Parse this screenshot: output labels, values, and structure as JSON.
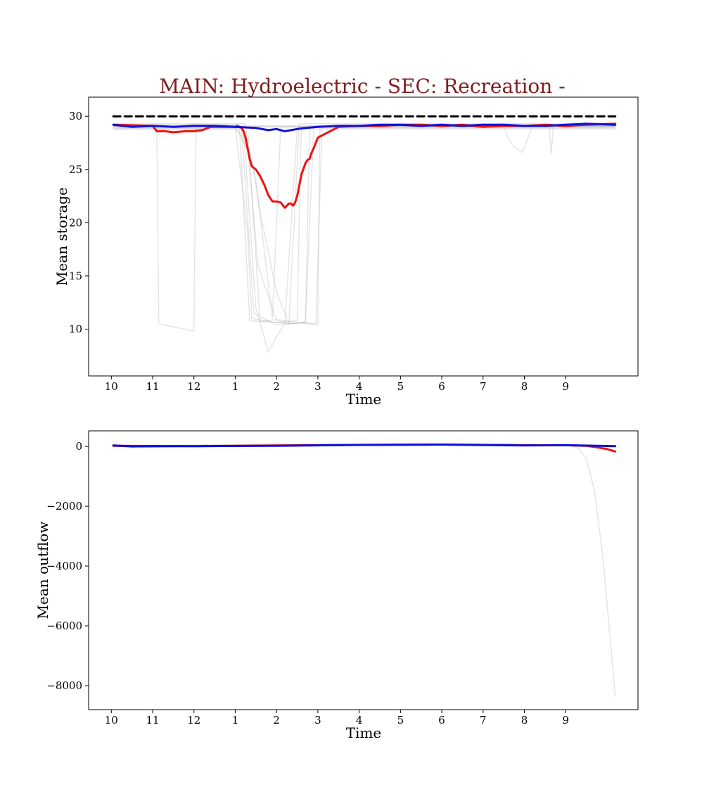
{
  "chart_data": [
    {
      "type": "line",
      "title": "MAIN: Hydroelectric - SEC: Recreation -",
      "xlabel": "Time",
      "ylabel": "Mean storage",
      "x_tick_labels": [
        "10",
        "11",
        "12",
        "1",
        "2",
        "3",
        "4",
        "5",
        "6",
        "7",
        "8",
        "9"
      ],
      "xlim": [
        -0.55,
        12.75
      ],
      "ylim": [
        5.6,
        31.8
      ],
      "y_ticks": [
        10,
        15,
        20,
        25,
        30
      ],
      "grid": false,
      "colors": {
        "capacity": "#000000",
        "red": "#ee1111",
        "blue": "#1010dd",
        "ensemble": "#b4b4b4"
      },
      "series": [
        {
          "role": "capacity",
          "style": "dashed",
          "color": "#000000",
          "x": [
            0.05,
            12.2
          ],
          "y": [
            30.0,
            30.0
          ]
        },
        {
          "role": "highlight",
          "color": "#ee1111",
          "x": [
            0.05,
            1.0,
            1.1,
            1.3,
            1.5,
            1.8,
            2.0,
            2.2,
            2.4,
            2.7,
            3.0,
            3.05,
            3.1,
            3.12,
            3.15,
            3.17,
            3.2,
            3.25,
            3.3,
            3.35,
            3.4,
            3.5,
            3.6,
            3.65,
            3.7,
            3.8,
            3.9,
            4.0,
            4.1,
            4.2,
            4.3,
            4.35,
            4.4,
            4.45,
            4.5,
            4.55,
            4.6,
            4.7,
            4.75,
            4.8,
            4.85,
            4.9,
            5.0,
            5.5,
            6.0,
            6.5,
            7.0,
            7.5,
            8.0,
            8.5,
            9.0,
            9.5,
            10.0,
            10.5,
            11.0,
            11.5,
            12.2
          ],
          "y": [
            29.2,
            29.1,
            28.6,
            28.6,
            28.5,
            28.6,
            28.6,
            28.7,
            29.0,
            29.0,
            29.0,
            29.1,
            29.0,
            29.0,
            28.9,
            28.8,
            28.6,
            28.0,
            27.0,
            26.0,
            25.3,
            25.0,
            24.4,
            24.0,
            23.6,
            22.6,
            22.0,
            22.0,
            21.9,
            21.4,
            21.8,
            21.8,
            21.6,
            21.9,
            22.5,
            23.5,
            24.5,
            25.6,
            25.9,
            26.0,
            26.6,
            27.0,
            28.0,
            29.0,
            29.1,
            29.1,
            29.2,
            29.2,
            29.1,
            29.2,
            29.0,
            29.1,
            29.1,
            29.2,
            29.1,
            29.2,
            29.3
          ]
        },
        {
          "role": "mean",
          "color": "#1010dd",
          "x": [
            0.05,
            0.5,
            1.0,
            1.5,
            2.0,
            2.5,
            3.0,
            3.5,
            3.8,
            4.0,
            4.2,
            4.5,
            4.7,
            5.0,
            5.5,
            6.0,
            6.5,
            7.0,
            7.5,
            8.0,
            8.5,
            9.0,
            9.5,
            10.0,
            10.5,
            11.0,
            11.5,
            12.2
          ],
          "y": [
            29.2,
            29.0,
            29.1,
            29.0,
            29.1,
            29.1,
            29.0,
            28.9,
            28.7,
            28.8,
            28.6,
            28.8,
            28.9,
            29.0,
            29.1,
            29.1,
            29.2,
            29.2,
            29.1,
            29.2,
            29.1,
            29.2,
            29.2,
            29.1,
            29.1,
            29.2,
            29.3,
            29.2
          ]
        },
        {
          "role": "ensemble",
          "color": "#b4b4b4",
          "x": [
            0.05,
            1.1,
            1.15,
            2.0,
            2.05,
            12.2
          ],
          "y": [
            29.0,
            29.0,
            10.5,
            9.8,
            29.0,
            29.0
          ]
        },
        {
          "role": "ensemble",
          "color": "#b4b4b4",
          "x": [
            0.05,
            3.0,
            3.3,
            3.4,
            4.0,
            4.2,
            4.5,
            4.6,
            12.2
          ],
          "y": [
            29.0,
            29.0,
            19.0,
            11.0,
            10.6,
            10.7,
            10.8,
            29.0,
            29.0
          ]
        },
        {
          "role": "ensemble",
          "color": "#b4b4b4",
          "x": [
            0.05,
            3.1,
            3.35,
            4.0,
            4.4,
            4.7,
            4.9,
            12.2
          ],
          "y": [
            29.2,
            29.2,
            10.8,
            10.6,
            10.5,
            10.7,
            29.1,
            29.1
          ]
        },
        {
          "role": "ensemble",
          "color": "#b4b4b4",
          "x": [
            0.05,
            3.2,
            3.5,
            3.8,
            4.0,
            4.2,
            4.5,
            12.2
          ],
          "y": [
            28.8,
            28.8,
            12.0,
            7.8,
            9.3,
            10.5,
            28.8,
            28.8
          ]
        },
        {
          "role": "ensemble",
          "color": "#b4b4b4",
          "x": [
            0.05,
            3.0,
            3.4,
            3.6,
            4.0,
            4.3,
            4.7,
            4.8,
            12.2
          ],
          "y": [
            29.1,
            29.1,
            26.0,
            21.0,
            13.5,
            10.5,
            10.6,
            29.1,
            29.1
          ]
        },
        {
          "role": "ensemble",
          "color": "#b4b4b4",
          "x": [
            0.05,
            3.3,
            3.6,
            4.0,
            4.5,
            4.95,
            5.1,
            12.2
          ],
          "y": [
            28.9,
            28.9,
            10.7,
            10.9,
            10.6,
            10.5,
            28.9,
            28.9
          ]
        },
        {
          "role": "ensemble",
          "color": "#b4b4b4",
          "x": [
            0.05,
            3.15,
            3.45,
            4.0,
            4.6,
            5.0,
            5.05,
            12.2
          ],
          "y": [
            29.0,
            29.0,
            11.5,
            10.4,
            10.6,
            10.4,
            29.0,
            29.0
          ]
        },
        {
          "role": "ensemble",
          "color": "#b4b4b4",
          "x": [
            0.05,
            3.25,
            3.55,
            4.0,
            4.3,
            4.55,
            12.2
          ],
          "y": [
            29.3,
            29.3,
            16.0,
            10.8,
            10.5,
            29.3,
            29.3
          ]
        },
        {
          "role": "ensemble",
          "color": "#b4b4b4",
          "x": [
            0.05,
            3.0,
            3.2,
            3.5,
            3.9,
            4.1,
            12.2
          ],
          "y": [
            28.8,
            28.8,
            28.0,
            24.0,
            11.0,
            29.0,
            29.0
          ]
        },
        {
          "role": "ensemble",
          "color": "#b4b4b4",
          "x": [
            0.05,
            9.5,
            9.6,
            9.75,
            9.95,
            10.2,
            12.2
          ],
          "y": [
            29.0,
            29.0,
            28.0,
            27.1,
            26.6,
            29.1,
            29.1
          ]
        },
        {
          "role": "ensemble",
          "color": "#b4b4b4",
          "x": [
            0.05,
            10.6,
            10.65,
            10.7,
            12.2
          ],
          "y": [
            29.1,
            29.1,
            26.5,
            29.0,
            29.0
          ]
        }
      ]
    },
    {
      "type": "line",
      "title": "",
      "xlabel": "Time",
      "ylabel": "Mean outflow",
      "x_tick_labels": [
        "10",
        "11",
        "12",
        "1",
        "2",
        "3",
        "4",
        "5",
        "6",
        "7",
        "8",
        "9"
      ],
      "xlim": [
        -0.55,
        12.75
      ],
      "ylim": [
        -8800,
        520
      ],
      "y_ticks": [
        0,
        -2000,
        -4000,
        -6000,
        -8000
      ],
      "y_tick_labels": [
        "0",
        "−2000",
        "−4000",
        "−6000",
        "−8000"
      ],
      "grid": false,
      "series": [
        {
          "role": "ensemble",
          "color": "#b4b4b4",
          "x": [
            0.05,
            2.0,
            4.0,
            6.0,
            8.0,
            10.0,
            11.0,
            11.3,
            11.5,
            11.7,
            11.9,
            12.05,
            12.2
          ],
          "y": [
            30,
            20,
            40,
            70,
            80,
            60,
            40,
            -50,
            -400,
            -1500,
            -3700,
            -6000,
            -8350
          ]
        },
        {
          "role": "ensemble",
          "color": "#b4b4b4",
          "x": [
            0.05,
            2.0,
            4.0,
            6.0,
            8.0,
            10.0,
            12.2
          ],
          "y": [
            20,
            50,
            90,
            60,
            90,
            40,
            10
          ]
        },
        {
          "role": "highlight",
          "color": "#ee1111",
          "x": [
            0.05,
            2.0,
            4.0,
            6.0,
            8.0,
            10.0,
            11.0,
            11.5,
            11.8,
            12.0,
            12.2
          ],
          "y": [
            20,
            10,
            30,
            50,
            60,
            40,
            40,
            20,
            -40,
            -90,
            -170
          ]
        },
        {
          "role": "mean",
          "color": "#1010dd",
          "x": [
            0.05,
            0.5,
            2.0,
            4.0,
            6.0,
            8.0,
            10.0,
            11.0,
            12.2
          ],
          "y": [
            30,
            0,
            10,
            20,
            50,
            60,
            30,
            40,
            10
          ]
        }
      ]
    }
  ]
}
